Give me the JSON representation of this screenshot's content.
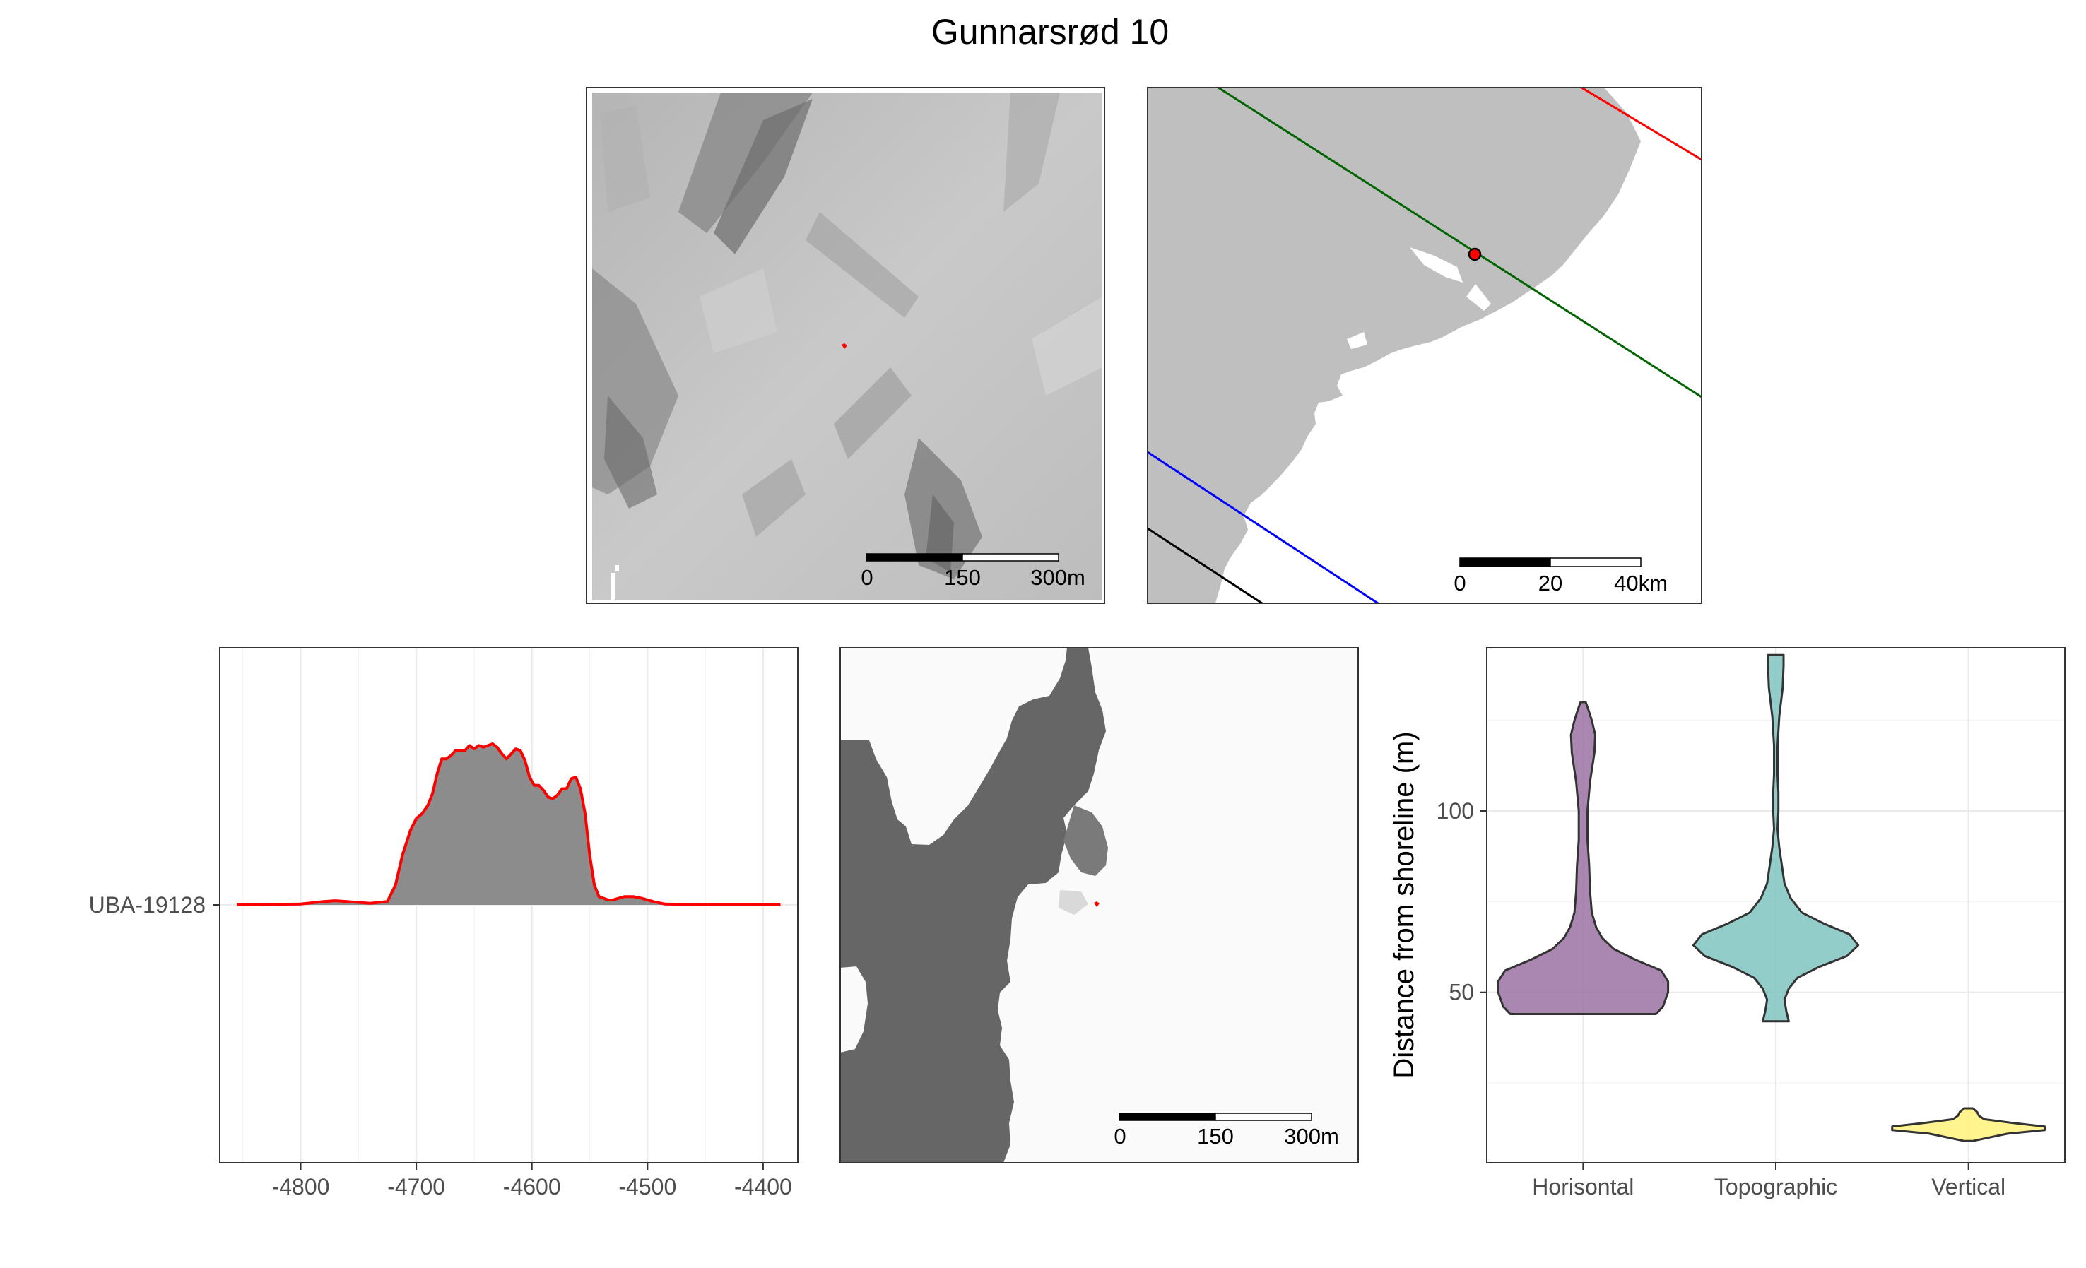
{
  "figure": {
    "title": "Gunnarsrød 10"
  },
  "colors": {
    "hillshade_light": "#c8c8c8",
    "hillshade_dark": "#7a7a7a",
    "land": "#bfbfbf",
    "sea_raster": "#666666",
    "site_marker": "#ff0000",
    "line_red": "#ff0000",
    "line_green": "#006400",
    "line_blue": "#0000ff",
    "line_black": "#000000",
    "density_fill": "#8c8c8c",
    "density_line": "#ff0000",
    "violin_horisontal": "#9b72a3",
    "violin_topographic": "#7fc4c0",
    "violin_vertical": "#fff27a"
  },
  "maps": {
    "hillshade": {
      "scalebar": {
        "ticks": [
          "0",
          "150",
          "300m"
        ]
      }
    },
    "overview": {
      "scalebar": {
        "ticks": [
          "0",
          "20",
          "40km"
        ]
      }
    },
    "sea_level": {
      "scalebar": {
        "ticks": [
          "0",
          "150",
          "300m"
        ]
      }
    }
  },
  "chart_data": [
    {
      "type": "area",
      "series": [
        {
          "name": "UBA-19128",
          "x": [
            -4855,
            -4800,
            -4780,
            -4770,
            -4760,
            -4740,
            -4725,
            -4718,
            -4712,
            -4705,
            -4700,
            -4695,
            -4690,
            -4686,
            -4682,
            -4678,
            -4674,
            -4670,
            -4666,
            -4662,
            -4658,
            -4654,
            -4650,
            -4646,
            -4642,
            -4638,
            -4634,
            -4630,
            -4626,
            -4622,
            -4618,
            -4614,
            -4610,
            -4606,
            -4602,
            -4598,
            -4594,
            -4590,
            -4586,
            -4582,
            -4578,
            -4574,
            -4570,
            -4566,
            -4562,
            -4558,
            -4554,
            -4550,
            -4546,
            -4542,
            -4538,
            -4534,
            -4530,
            -4525,
            -4520,
            -4512,
            -4505,
            -4495,
            -4485,
            -4470,
            -4450,
            -4385
          ],
          "y": [
            0,
            0.005,
            0.02,
            0.025,
            0.02,
            0.01,
            0.02,
            0.12,
            0.3,
            0.45,
            0.52,
            0.55,
            0.6,
            0.67,
            0.79,
            0.88,
            0.88,
            0.9,
            0.93,
            0.93,
            0.93,
            0.96,
            0.94,
            0.96,
            0.95,
            0.96,
            0.97,
            0.95,
            0.91,
            0.88,
            0.91,
            0.94,
            0.93,
            0.87,
            0.77,
            0.72,
            0.72,
            0.69,
            0.65,
            0.64,
            0.66,
            0.7,
            0.7,
            0.76,
            0.77,
            0.7,
            0.55,
            0.3,
            0.12,
            0.05,
            0.04,
            0.03,
            0.03,
            0.04,
            0.05,
            0.05,
            0.04,
            0.02,
            0.005,
            0.003,
            0,
            0
          ]
        }
      ],
      "xlim": [
        -4870,
        -4370
      ],
      "x_ticks": [
        -4800,
        -4700,
        -4600,
        -4500,
        -4400
      ],
      "y_labels": [
        "UBA-19128"
      ],
      "grid": true
    },
    {
      "type": "violin",
      "categories": [
        "Horisontal",
        "Topographic",
        "Vertical"
      ],
      "ylabel": "Distance from shoreline (m)",
      "ylim": [
        3,
        145
      ],
      "y_ticks": [
        50,
        100
      ],
      "series": [
        {
          "name": "Horisontal",
          "profile": [
            [
              44,
              0.84
            ],
            [
              46,
              0.92
            ],
            [
              50,
              0.98
            ],
            [
              53,
              0.98
            ],
            [
              56,
              0.9
            ],
            [
              59,
              0.6
            ],
            [
              62,
              0.35
            ],
            [
              65,
              0.22
            ],
            [
              68,
              0.15
            ],
            [
              72,
              0.1
            ],
            [
              78,
              0.08
            ],
            [
              85,
              0.07
            ],
            [
              92,
              0.05
            ],
            [
              100,
              0.05
            ],
            [
              108,
              0.08
            ],
            [
              116,
              0.13
            ],
            [
              121,
              0.14
            ],
            [
              125,
              0.1
            ],
            [
              128,
              0.06
            ],
            [
              130,
              0.03
            ]
          ]
        },
        {
          "name": "Topographic",
          "profile": [
            [
              42,
              0.15
            ],
            [
              45,
              0.12
            ],
            [
              48,
              0.1
            ],
            [
              51,
              0.15
            ],
            [
              54,
              0.25
            ],
            [
              57,
              0.5
            ],
            [
              60,
              0.82
            ],
            [
              63,
              0.95
            ],
            [
              66,
              0.85
            ],
            [
              69,
              0.55
            ],
            [
              72,
              0.3
            ],
            [
              76,
              0.17
            ],
            [
              80,
              0.1
            ],
            [
              85,
              0.07
            ],
            [
              90,
              0.04
            ],
            [
              95,
              0.02
            ],
            [
              100,
              0.03
            ],
            [
              105,
              0.03
            ],
            [
              110,
              0.02
            ],
            [
              118,
              0.02
            ],
            [
              126,
              0.04
            ],
            [
              134,
              0.08
            ],
            [
              140,
              0.09
            ],
            [
              143,
              0.09
            ]
          ]
        },
        {
          "name": "Vertical",
          "profile": [
            [
              9,
              0.05
            ],
            [
              11,
              0.45
            ],
            [
              12,
              0.88
            ],
            [
              13,
              0.88
            ],
            [
              14,
              0.5
            ],
            [
              15,
              0.18
            ],
            [
              16,
              0.12
            ],
            [
              17,
              0.1
            ],
            [
              18,
              0.05
            ]
          ]
        }
      ],
      "grid": true
    }
  ]
}
